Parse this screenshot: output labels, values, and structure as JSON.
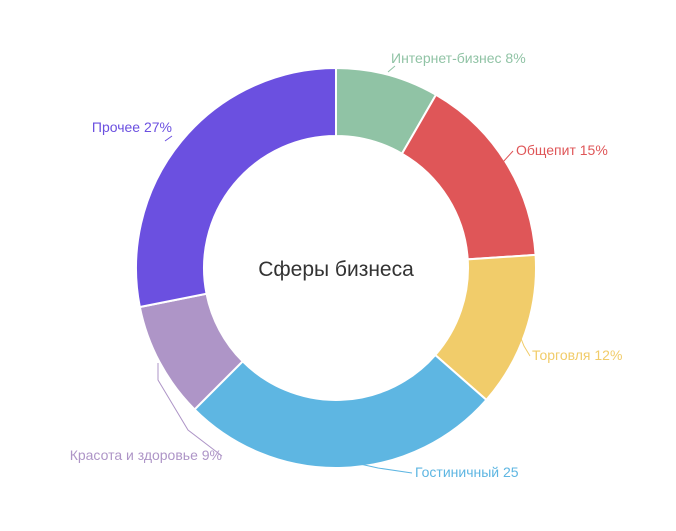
{
  "chart_data": {
    "type": "pie",
    "title": "Сферы бизнеса",
    "slices": [
      {
        "label": "Интернет-бизнес 8%",
        "value": 8,
        "color": "#90c3a5"
      },
      {
        "label": "Общепит 15%",
        "value": 15,
        "color": "#df5658"
      },
      {
        "label": "Торговля 12%",
        "value": 12,
        "color": "#f1cc6a"
      },
      {
        "label": "Гостиничный 25",
        "value": 25,
        "color": "#5eb6e2"
      },
      {
        "label": "Красота и здоровье 9%",
        "value": 9,
        "color": "#ae95c7"
      },
      {
        "label": "Прочее 27%",
        "value": 27,
        "color": "#6b50e0"
      }
    ]
  }
}
